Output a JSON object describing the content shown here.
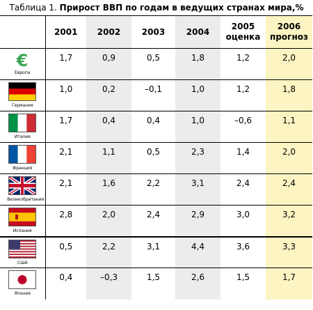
{
  "title": {
    "prefix": "Таблица 1. ",
    "text": "Прирост ВВП по годам в ведущих странах мира,%"
  },
  "headers": [
    {
      "line1": "2001",
      "line2": ""
    },
    {
      "line1": "2002",
      "line2": ""
    },
    {
      "line1": "2003",
      "line2": ""
    },
    {
      "line1": "2004",
      "line2": ""
    },
    {
      "line1": "2005",
      "line2": "оценка"
    },
    {
      "line1": "2006",
      "line2": "прогноз"
    }
  ],
  "rows": [
    {
      "country": "Европа",
      "flag": "euro-icon",
      "values": [
        "1,7",
        "0,9",
        "0,5",
        "1,8",
        "1,2",
        "2,0"
      ]
    },
    {
      "country": "Германия",
      "flag": "germany-flag-icon",
      "values": [
        "1,0",
        "0,2",
        "–0,1",
        "1,0",
        "1,2",
        "1,8"
      ]
    },
    {
      "country": "Италия",
      "flag": "italy-flag-icon",
      "values": [
        "1,7",
        "0,4",
        "0,4",
        "1,0",
        "–0,6",
        "1,1"
      ]
    },
    {
      "country": "Франция",
      "flag": "france-flag-icon",
      "values": [
        "2,1",
        "1,1",
        "0,5",
        "2,3",
        "1,4",
        "2,0"
      ]
    },
    {
      "country": "Великобритания",
      "flag": "uk-flag-icon",
      "values": [
        "2,1",
        "1,6",
        "2,2",
        "3,1",
        "2,4",
        "2,4"
      ]
    },
    {
      "country": "Испания",
      "flag": "spain-flag-icon",
      "values": [
        "2,8",
        "2,0",
        "2,4",
        "2,9",
        "3,0",
        "3,2"
      ]
    },
    {
      "country": "США",
      "flag": "usa-flag-icon",
      "values": [
        "0,5",
        "2,2",
        "3,1",
        "4,4",
        "3,6",
        "3,3"
      ]
    },
    {
      "country": "Япония",
      "flag": "japan-flag-icon",
      "values": [
        "0,4",
        "–0,3",
        "1,5",
        "2,6",
        "1,5",
        "1,7"
      ]
    }
  ],
  "colors": {
    "shade": "#ececec",
    "forecast": "#fcf5c3",
    "euro_green": "#3aa655"
  }
}
